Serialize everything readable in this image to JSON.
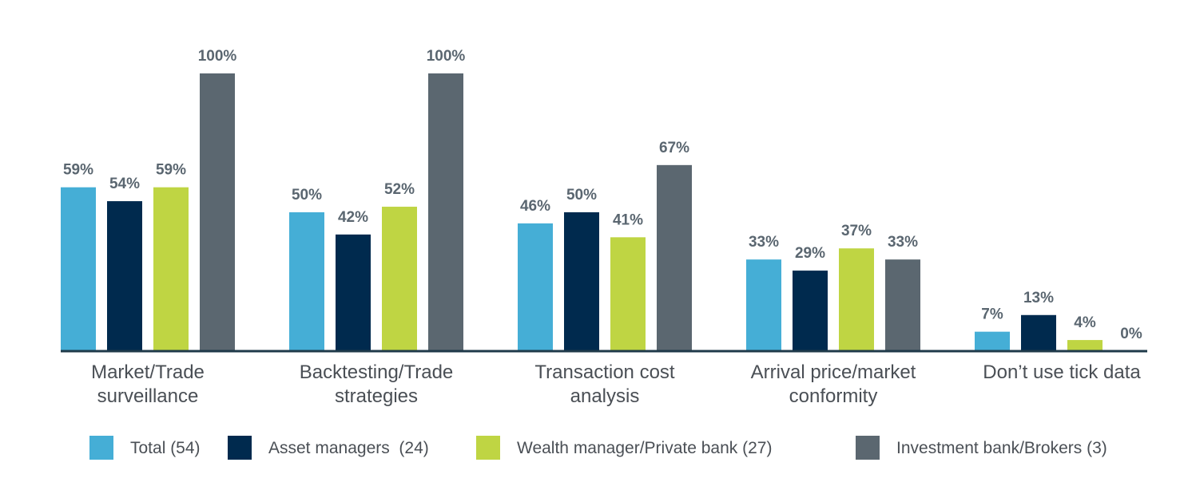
{
  "chart_data": {
    "type": "bar",
    "title": "",
    "xlabel": "",
    "ylabel": "",
    "ylim": [
      0,
      100
    ],
    "unit": "%",
    "grid": false,
    "legend_position": "bottom",
    "categories": [
      [
        "Market/Trade",
        "surveillance"
      ],
      [
        "Backtesting/Trade",
        "strategies"
      ],
      [
        "Transaction cost",
        "analysis"
      ],
      [
        "Arrival price/market",
        "conformity"
      ],
      [
        "Don’t use tick data"
      ]
    ],
    "series": [
      {
        "name": "Total (54)",
        "color": "#45aed6",
        "values": [
          59,
          50,
          46,
          33,
          7
        ]
      },
      {
        "name": "Asset managers  (24)",
        "color": "#002a4e",
        "values": [
          54,
          42,
          50,
          29,
          13
        ]
      },
      {
        "name": "Wealth manager/Private bank (27)",
        "color": "#bfd543",
        "values": [
          59,
          52,
          41,
          37,
          4
        ]
      },
      {
        "name": "Investment bank/Brokers (3)",
        "color": "#5b6770",
        "values": [
          100,
          100,
          67,
          33,
          0
        ]
      }
    ],
    "axis_color": "#1f3a4a"
  }
}
